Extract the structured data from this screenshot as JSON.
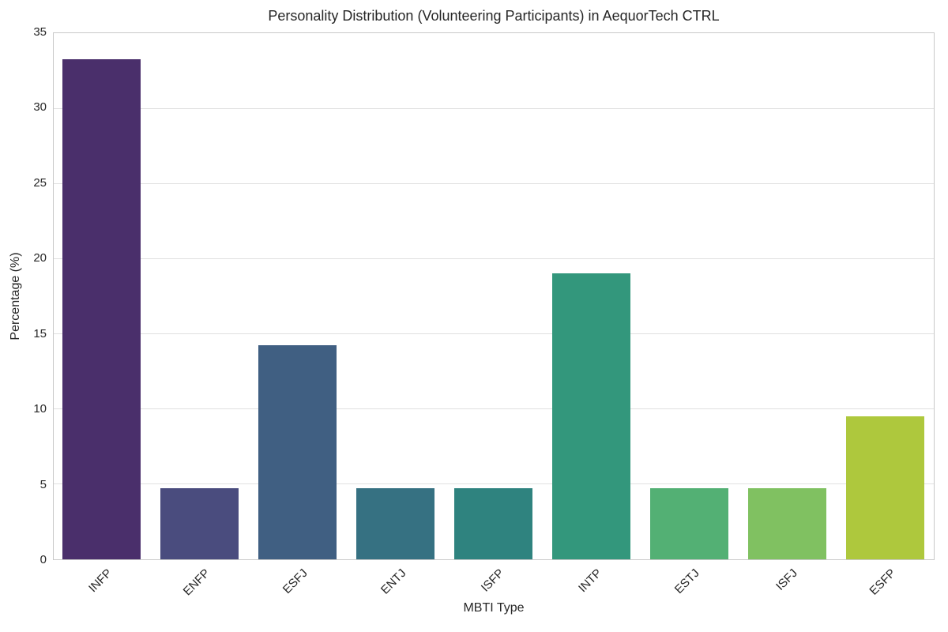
{
  "page": {
    "background_color": "#ffffff"
  },
  "chart_data": {
    "type": "bar",
    "title": "Personality Distribution (Volunteering Participants) in AequorTech CTRL",
    "xlabel": "MBTI Type",
    "ylabel": "Percentage (%)",
    "categories": [
      "INFP",
      "ENFP",
      "ESFJ",
      "ENTJ",
      "ISFP",
      "INTP",
      "ESTJ",
      "ISFJ",
      "ESFP"
    ],
    "values": [
      33.33,
      4.76,
      14.29,
      4.76,
      4.76,
      19.05,
      4.76,
      4.76,
      9.52
    ],
    "bar_colors": [
      "#4a2f6b",
      "#4a4c7e",
      "#405f82",
      "#367182",
      "#2f837f",
      "#33977c",
      "#53b074",
      "#80c161",
      "#aec83d"
    ],
    "ylim": [
      0,
      35
    ],
    "yticks": [
      0,
      5,
      10,
      15,
      20,
      25,
      30,
      35
    ],
    "x_tick_rotation_deg": 45,
    "grid": "horizontal",
    "legend_position": "none",
    "bar_relative_width": 0.8,
    "style_colors": {
      "grid_color": "#e0e0e0",
      "spine_color": "#c9c9c9",
      "tick_text_color": "#262626",
      "title_text_color": "#262626"
    }
  }
}
